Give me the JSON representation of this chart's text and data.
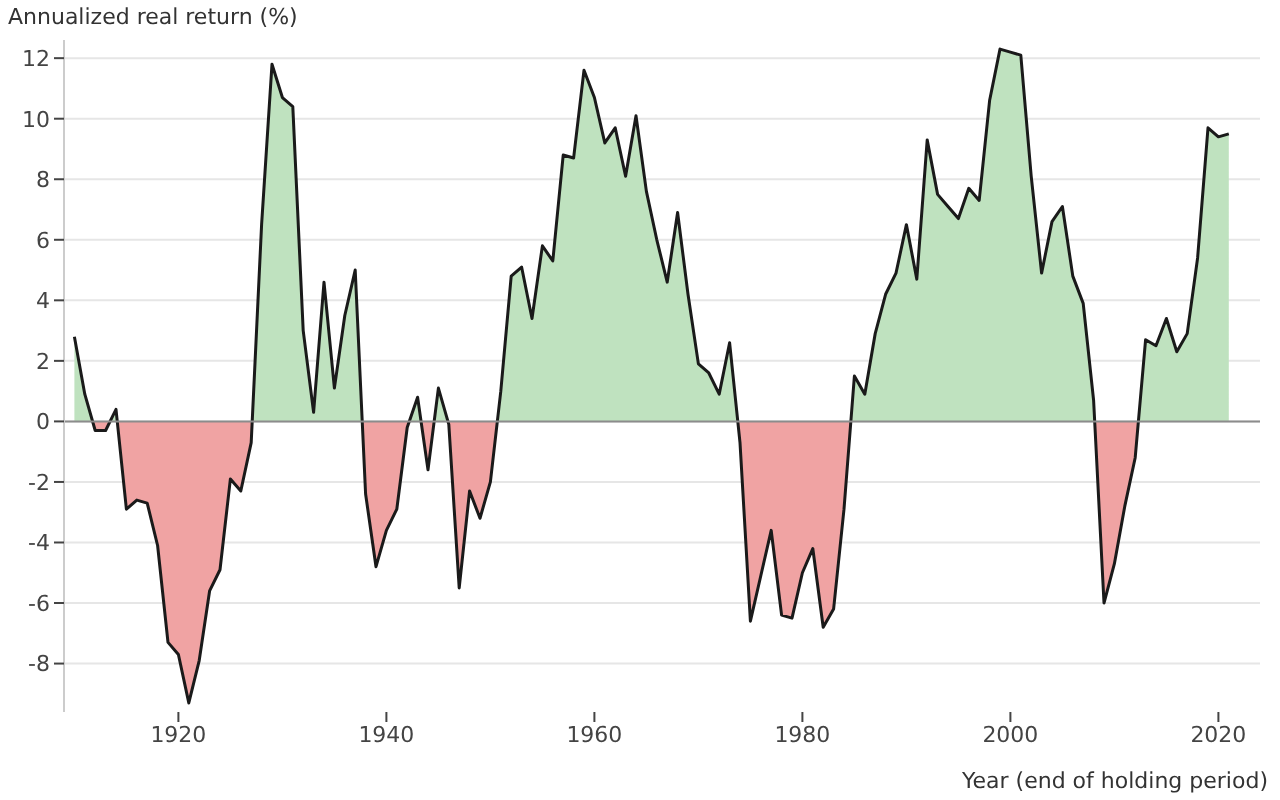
{
  "chart_data": {
    "type": "area",
    "ylabel": "Annualized real return (%)",
    "xlabel": "Year (end of holding period)",
    "x": [
      1910,
      1911,
      1912,
      1913,
      1914,
      1915,
      1916,
      1917,
      1918,
      1919,
      1920,
      1921,
      1922,
      1923,
      1924,
      1925,
      1926,
      1927,
      1928,
      1929,
      1930,
      1931,
      1932,
      1933,
      1934,
      1935,
      1936,
      1937,
      1938,
      1939,
      1940,
      1941,
      1942,
      1943,
      1944,
      1945,
      1946,
      1947,
      1948,
      1949,
      1950,
      1951,
      1952,
      1953,
      1954,
      1955,
      1956,
      1957,
      1958,
      1959,
      1960,
      1961,
      1962,
      1963,
      1964,
      1965,
      1966,
      1967,
      1968,
      1969,
      1970,
      1971,
      1972,
      1973,
      1974,
      1975,
      1976,
      1977,
      1978,
      1979,
      1980,
      1981,
      1982,
      1983,
      1984,
      1985,
      1986,
      1987,
      1988,
      1989,
      1990,
      1991,
      1992,
      1993,
      1994,
      1995,
      1996,
      1997,
      1998,
      1999,
      2000,
      2001,
      2002,
      2003,
      2004,
      2005,
      2006,
      2007,
      2008,
      2009,
      2010,
      2011,
      2012,
      2013,
      2014,
      2015,
      2016,
      2017,
      2018,
      2019,
      2020,
      2021
    ],
    "series": [
      {
        "color": "#1a1a1a",
        "values": [
          2.8,
          0.9,
          -0.3,
          -0.3,
          0.4,
          -2.9,
          -2.6,
          -2.7,
          -4.1,
          -7.3,
          -7.7,
          -9.3,
          -7.9,
          -5.6,
          -4.9,
          -1.9,
          -2.3,
          -0.7,
          6.5,
          11.8,
          10.7,
          10.4,
          3.0,
          0.3,
          4.6,
          1.1,
          3.5,
          5.0,
          -2.4,
          -4.8,
          -3.6,
          -2.9,
          -0.2,
          0.8,
          -1.6,
          1.1,
          -0.1,
          -5.5,
          -2.3,
          -3.2,
          -2.0,
          1.0,
          4.8,
          5.1,
          3.4,
          5.8,
          5.3,
          8.8,
          8.7,
          11.6,
          10.7,
          9.2,
          9.7,
          8.1,
          10.1,
          7.6,
          6.0,
          4.6,
          6.9,
          4.2,
          1.9,
          1.6,
          0.9,
          2.6,
          -0.7,
          -6.6,
          -5.1,
          -3.6,
          -6.4,
          -6.5,
          -5.0,
          -4.2,
          -6.8,
          -6.2,
          -2.9,
          1.5,
          0.9,
          2.9,
          4.2,
          4.9,
          6.5,
          4.7,
          9.3,
          7.5,
          7.1,
          6.7,
          7.7,
          7.3,
          10.6,
          12.3,
          12.2,
          12.1,
          8.1,
          4.9,
          6.6,
          7.1,
          4.8,
          3.9,
          0.7,
          -6.0,
          -4.7,
          -2.8,
          -1.2,
          2.7,
          2.5,
          3.4,
          2.3,
          2.9,
          5.4,
          9.7,
          9.4,
          9.5
        ],
        "colors": [
          "#bfe2bf",
          "#bfe2bf",
          "#f0a3a3",
          "#f0a3a3",
          "#bfe2bf",
          "#f0a3a3",
          "#f0a3a3",
          "#f0a3a3",
          "#f0a3a3",
          "#f0a3a3",
          "#f0a3a3",
          "#f0a3a3",
          "#f0a3a3",
          "#f0a3a3",
          "#f0a3a3",
          "#f0a3a3",
          "#f0a3a3",
          "#f0a3a3",
          "#bfe2bf",
          "#bfe2bf",
          "#bfe2bf",
          "#bfe2bf",
          "#bfe2bf",
          "#bfe2bf",
          "#bfe2bf",
          "#bfe2bf",
          "#bfe2bf",
          "#bfe2bf",
          "#f0a3a3",
          "#f0a3a3",
          "#f0a3a3",
          "#f0a3a3",
          "#f0a3a3",
          "#bfe2bf",
          "#f0a3a3",
          "#bfe2bf",
          "#f0a3a3",
          "#f0a3a3",
          "#f0a3a3",
          "#f0a3a3",
          "#f0a3a3",
          "#bfe2bf",
          "#bfe2bf",
          "#bfe2bf",
          "#bfe2bf",
          "#bfe2bf",
          "#bfe2bf",
          "#bfe2bf",
          "#bfe2bf",
          "#bfe2bf",
          "#bfe2bf",
          "#bfe2bf",
          "#bfe2bf",
          "#bfe2bf",
          "#bfe2bf",
          "#bfe2bf",
          "#bfe2bf",
          "#bfe2bf",
          "#bfe2bf",
          "#bfe2bf",
          "#bfe2bf",
          "#bfe2bf",
          "#bfe2bf",
          "#bfe2bf",
          "#f0a3a3",
          "#f0a3a3",
          "#f0a3a3",
          "#f0a3a3",
          "#f0a3a3",
          "#f0a3a3",
          "#f0a3a3",
          "#f0a3a3",
          "#f0a3a3",
          "#f0a3a3",
          "#f0a3a3",
          "#bfe2bf",
          "#bfe2bf",
          "#bfe2bf",
          "#bfe2bf",
          "#bfe2bf",
          "#bfe2bf",
          "#bfe2bf",
          "#bfe2bf",
          "#bfe2bf",
          "#bfe2bf",
          "#bfe2bf",
          "#bfe2bf",
          "#bfe2bf",
          "#bfe2bf",
          "#bfe2bf",
          "#bfe2bf",
          "#bfe2bf",
          "#bfe2bf",
          "#bfe2bf",
          "#bfe2bf",
          "#bfe2bf",
          "#bfe2bf",
          "#bfe2bf",
          "#bfe2bf",
          "#f0a3a3",
          "#f0a3a3",
          "#f0a3a3",
          "#f0a3a3",
          "#bfe2bf",
          "#bfe2bf",
          "#bfe2bf",
          "#bfe2bf",
          "#bfe2bf",
          "#bfe2bf",
          "#bfe2bf",
          "#bfe2bf",
          "#bfe2bf"
        ]
      }
    ],
    "xlim": [
      1909,
      2024
    ],
    "xticks": [
      1920,
      1940,
      1960,
      1980,
      2000,
      2020
    ],
    "ylim": [
      -9.6,
      12.6
    ],
    "yticks": [
      -8,
      -6,
      -4,
      -2,
      0,
      2,
      4,
      6,
      8,
      10,
      12
    ],
    "ref_lines": [
      {
        "axis": "y",
        "value": 0,
        "color": "#8c8c8c"
      }
    ],
    "grid": "y",
    "marker": "none",
    "line_style": "solid"
  }
}
